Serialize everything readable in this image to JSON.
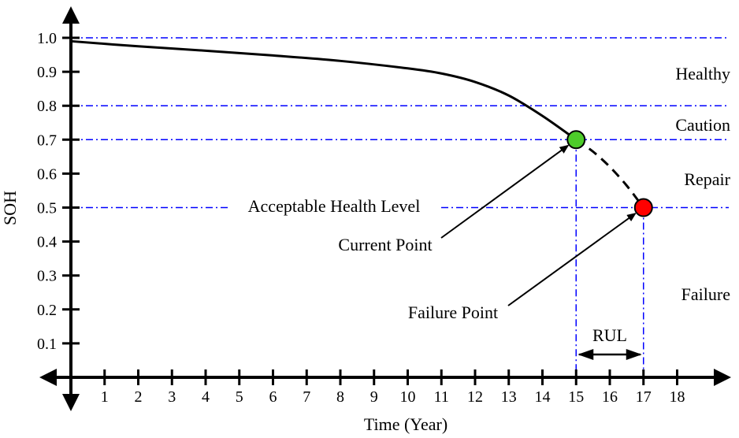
{
  "chart_data": {
    "type": "line",
    "title": "",
    "xlabel": "Time (Year)",
    "ylabel": "SOH",
    "xlim": [
      0,
      19
    ],
    "ylim": [
      0,
      1.0
    ],
    "x_ticks": [
      "1",
      "2",
      "3",
      "4",
      "5",
      "6",
      "7",
      "8",
      "9",
      "10",
      "11",
      "12",
      "13",
      "14",
      "15",
      "16",
      "17",
      "18"
    ],
    "y_ticks": [
      "0.1",
      "0.2",
      "0.3",
      "0.4",
      "0.5",
      "0.6",
      "0.7",
      "0.8",
      "0.9",
      "1.0"
    ],
    "grid": false,
    "series": [
      {
        "style": "solid",
        "points": [
          [
            0,
            0.99
          ],
          [
            2,
            0.975
          ],
          [
            4,
            0.962
          ],
          [
            6,
            0.948
          ],
          [
            8,
            0.932
          ],
          [
            10,
            0.91
          ],
          [
            11,
            0.895
          ],
          [
            12,
            0.87
          ],
          [
            13,
            0.83
          ],
          [
            14,
            0.77
          ],
          [
            15,
            0.7
          ]
        ]
      },
      {
        "style": "dashed",
        "points": [
          [
            15,
            0.7
          ],
          [
            15.5,
            0.665
          ],
          [
            16,
            0.62
          ],
          [
            16.5,
            0.565
          ],
          [
            17,
            0.5
          ]
        ]
      }
    ],
    "threshold_lines": [
      {
        "y": 1.0,
        "color": "#0000ff"
      },
      {
        "y": 0.8,
        "color": "#0000ff"
      },
      {
        "y": 0.7,
        "color": "#0000ff"
      },
      {
        "y": 0.5,
        "color": "#0000ff"
      }
    ],
    "vertical_lines": [
      {
        "x": 15,
        "color": "#0000ff"
      },
      {
        "x": 17,
        "color": "#0000ff"
      }
    ],
    "points": [
      {
        "label": "Current Point",
        "x": 15,
        "y": 0.7,
        "color": "#4dcc2a"
      },
      {
        "label": "Failure Point",
        "x": 17,
        "y": 0.5,
        "color": "#ff0000"
      }
    ],
    "zones": [
      "Healthy",
      "Caution",
      "Repair",
      "Failure"
    ],
    "annotations": {
      "acceptable_level": "Acceptable Health Level",
      "rul": "RUL"
    }
  }
}
